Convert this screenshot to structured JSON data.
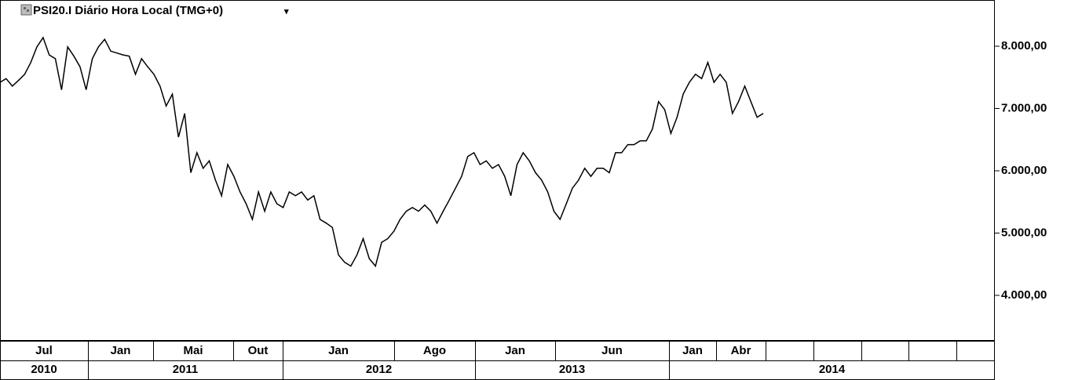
{
  "chart_data": {
    "type": "line",
    "title": "PSI20.I Diário Hora Local (TMG+0)",
    "months": [
      "Jul",
      "Jan",
      "Mai",
      "Out",
      "Jan",
      "Ago",
      "Jan",
      "Jun",
      "Jan",
      "Abr",
      null,
      null,
      null,
      null,
      null
    ],
    "years": [
      "2010",
      "2011",
      "2012",
      "2013",
      "2014"
    ],
    "series": [
      {
        "color": "#000000",
        "values": [
          7420,
          7480,
          7360,
          7450,
          7550,
          7740,
          7990,
          8140,
          7860,
          7800,
          7300,
          7990,
          7840,
          7670,
          7300,
          7800,
          7990,
          8110,
          7920,
          7890,
          7860,
          7840,
          7550,
          7800,
          7670,
          7550,
          7360,
          7040,
          7230,
          6540,
          6920,
          5970,
          6290,
          6040,
          6160,
          5850,
          5600,
          6100,
          5910,
          5660,
          5470,
          5220,
          5660,
          5350,
          5660,
          5470,
          5410,
          5660,
          5600,
          5660,
          5530,
          5600,
          5220,
          5160,
          5090,
          4650,
          4530,
          4470,
          4650,
          4910,
          4590,
          4470,
          4850,
          4910,
          5030,
          5220,
          5350,
          5410,
          5350,
          5450,
          5350,
          5160,
          5350,
          5530,
          5720,
          5910,
          6230,
          6290,
          6100,
          6160,
          6040,
          6100,
          5910,
          5600,
          6100,
          6290,
          6160,
          5970,
          5850,
          5660,
          5350,
          5220,
          5470,
          5720,
          5850,
          6040,
          5910,
          6040,
          6040,
          5970,
          6290,
          6290,
          6420,
          6420,
          6480,
          6480,
          6670,
          7110,
          6980,
          6600,
          6860,
          7230,
          7420,
          7550,
          7480,
          7740,
          7420,
          7550,
          7420,
          6920,
          7110,
          7360,
          7110,
          6860,
          6920
        ]
      }
    ],
    "ylim": [
      3270,
      8742
    ],
    "yticks": [
      {
        "value": 4000,
        "label": "4.000,00"
      },
      {
        "value": 5000,
        "label": "5.000,00"
      },
      {
        "value": 6000,
        "label": "6.000,00"
      },
      {
        "value": 7000,
        "label": "7.000,00"
      },
      {
        "value": 8000,
        "label": "8.000,00"
      }
    ],
    "grid": false
  }
}
